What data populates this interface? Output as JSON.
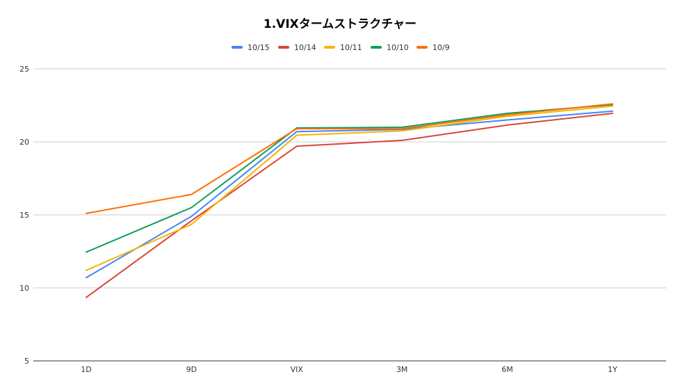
{
  "chart_data": {
    "type": "line",
    "title": "1.VIXタームストラクチャー",
    "xlabel": "",
    "ylabel": "",
    "categories": [
      "1D",
      "9D",
      "VIX",
      "3M",
      "6M",
      "1Y"
    ],
    "ylim": [
      5,
      25
    ],
    "yticks": [
      5,
      10,
      15,
      20,
      25
    ],
    "grid": true,
    "legend_position": "top",
    "series": [
      {
        "name": "10/15",
        "color": "#4285f4",
        "values": [
          10.7,
          14.9,
          20.7,
          20.85,
          21.5,
          22.1
        ]
      },
      {
        "name": "10/14",
        "color": "#db4437",
        "values": [
          9.35,
          14.6,
          19.7,
          20.1,
          21.15,
          21.95
        ]
      },
      {
        "name": "10/11",
        "color": "#f4b400",
        "values": [
          11.2,
          14.35,
          20.45,
          20.75,
          21.75,
          22.45
        ]
      },
      {
        "name": "10/10",
        "color": "#0f9d58",
        "values": [
          12.45,
          15.5,
          20.95,
          21.0,
          21.95,
          22.55
        ]
      },
      {
        "name": "10/9",
        "color": "#ff6d00",
        "values": [
          15.1,
          16.4,
          20.9,
          20.9,
          21.85,
          22.6
        ]
      }
    ]
  }
}
